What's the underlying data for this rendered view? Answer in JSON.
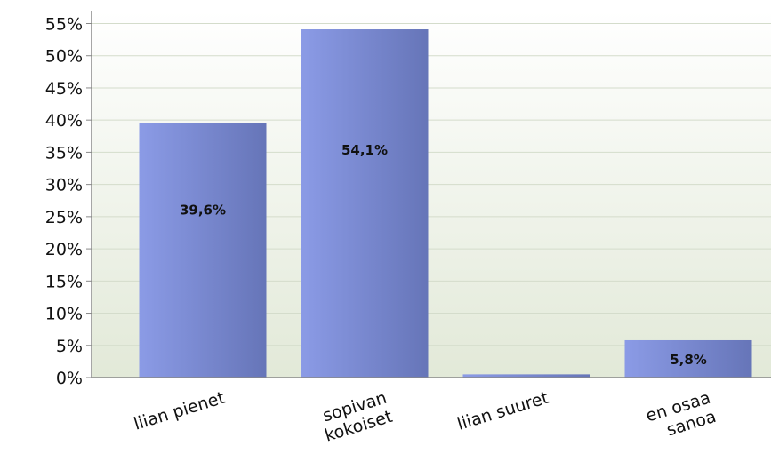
{
  "chart_data": {
    "type": "bar",
    "categories": [
      [
        "liian pienet"
      ],
      [
        "sopivan",
        "kokoiset"
      ],
      [
        "liian suuret"
      ],
      [
        "en osaa",
        "sanoa"
      ]
    ],
    "values": [
      39.6,
      54.1,
      0.5,
      5.8
    ],
    "data_labels": [
      "39,6%",
      "54,1%",
      "",
      "5,8%"
    ],
    "ylim": [
      0,
      57
    ],
    "yticks": [
      0,
      5,
      10,
      15,
      20,
      25,
      30,
      35,
      40,
      45,
      50,
      55
    ],
    "ytick_labels": [
      "0%",
      "5%",
      "10%",
      "15%",
      "20%",
      "25%",
      "30%",
      "35%",
      "40%",
      "45%",
      "50%",
      "55%"
    ],
    "title": "",
    "xlabel": "",
    "ylabel": "",
    "grid": true,
    "legend": "none",
    "colors": {
      "bar_light": "#8b9be6",
      "bar_dark": "#6675b8",
      "plot_bg_top": "#ffffff",
      "plot_bg_bottom": "#e2e9d8",
      "grid": "#d4dccb",
      "axis": "#888888"
    }
  }
}
